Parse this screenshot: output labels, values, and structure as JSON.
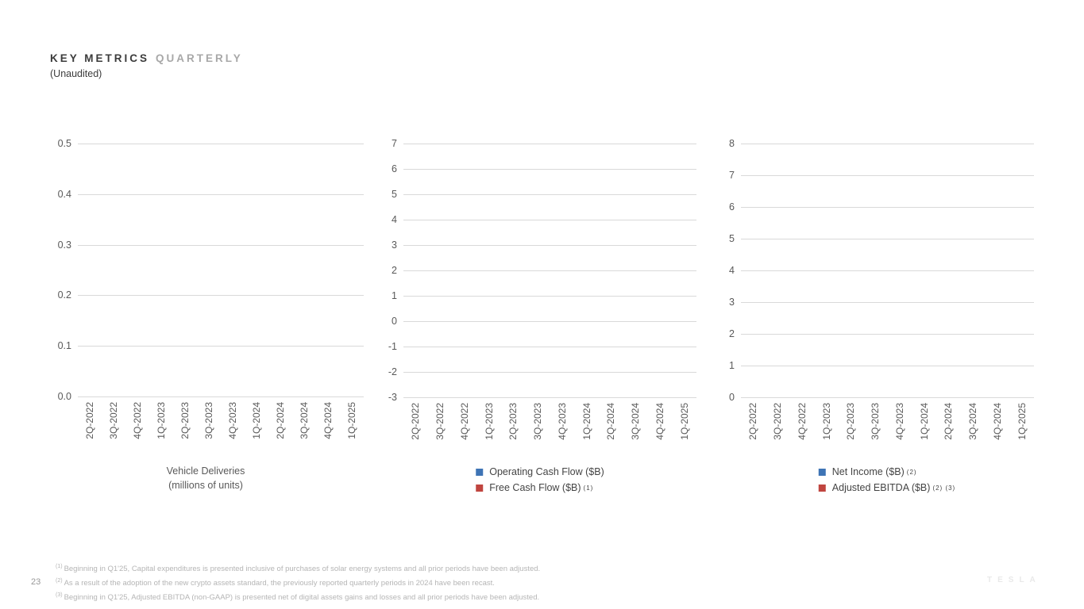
{
  "slide": {
    "title_primary": "KEY METRICS",
    "title_secondary": "QUARTERLY",
    "subtitle": "(Unaudited)",
    "page_number": "23",
    "watermark": "TESLA"
  },
  "colors": {
    "series_blue": "#3e74b5",
    "series_red": "#c0453f",
    "gridline": "#d9d9d9",
    "axis_text": "#595959"
  },
  "categories": [
    "2Q-2022",
    "3Q-2022",
    "4Q-2022",
    "1Q-2023",
    "2Q-2023",
    "3Q-2023",
    "4Q-2023",
    "1Q-2024",
    "2Q-2024",
    "3Q-2024",
    "4Q-2024",
    "1Q-2025"
  ],
  "chart_data": [
    {
      "type": "bar",
      "name": "chart-vehicle-deliveries",
      "title": "Vehicle Deliveries",
      "title_line2": "(millions of units)",
      "categories": [
        "2Q-2022",
        "3Q-2022",
        "4Q-2022",
        "1Q-2023",
        "2Q-2023",
        "3Q-2023",
        "4Q-2023",
        "1Q-2024",
        "2Q-2024",
        "3Q-2024",
        "4Q-2024",
        "1Q-2025"
      ],
      "series": [],
      "yticks": [
        "0.5",
        "0.4",
        "0.3",
        "0.2",
        "0.1",
        "0.0"
      ],
      "ylim": [
        0.0,
        0.5
      ],
      "grid": true,
      "legend_position": "none",
      "plotted_values": "empty - axes and gridlines only, no data rendered"
    },
    {
      "type": "bar",
      "name": "chart-cash-flow",
      "title": "",
      "categories": [
        "2Q-2022",
        "3Q-2022",
        "4Q-2022",
        "1Q-2023",
        "2Q-2023",
        "3Q-2023",
        "4Q-2023",
        "1Q-2024",
        "2Q-2024",
        "3Q-2024",
        "4Q-2024",
        "1Q-2025"
      ],
      "series": [
        {
          "name": "Operating Cash Flow ($B)",
          "sup": "",
          "color": "#3e74b5",
          "values": []
        },
        {
          "name": "Free Cash Flow ($B)",
          "sup": "(1)",
          "color": "#c0453f",
          "values": []
        }
      ],
      "yticks": [
        "7",
        "6",
        "5",
        "4",
        "3",
        "2",
        "1",
        "0",
        "-1",
        "-2",
        "-3"
      ],
      "ylim": [
        -3,
        7
      ],
      "grid": true,
      "legend_position": "bottom",
      "plotted_values": "empty - axes and gridlines only, no data rendered"
    },
    {
      "type": "bar",
      "name": "chart-net-income-ebitda",
      "title": "",
      "categories": [
        "2Q-2022",
        "3Q-2022",
        "4Q-2022",
        "1Q-2023",
        "2Q-2023",
        "3Q-2023",
        "4Q-2023",
        "1Q-2024",
        "2Q-2024",
        "3Q-2024",
        "4Q-2024",
        "1Q-2025"
      ],
      "series": [
        {
          "name": "Net Income ($B)",
          "sup": "(2)",
          "color": "#3e74b5",
          "values": []
        },
        {
          "name": "Adjusted EBITDA ($B)",
          "sup": "(2) (3)",
          "color": "#c0453f",
          "values": []
        }
      ],
      "yticks": [
        "8",
        "7",
        "6",
        "5",
        "4",
        "3",
        "2",
        "1",
        "0"
      ],
      "ylim": [
        0,
        8
      ],
      "grid": true,
      "legend_position": "bottom",
      "plotted_values": "empty - axes and gridlines only, no data rendered"
    }
  ],
  "footnotes": [
    {
      "marker": "(1)",
      "text": "Beginning in Q1'25, Capital expenditures is presented inclusive of purchases of solar energy systems and all prior periods have been adjusted."
    },
    {
      "marker": "(2)",
      "text": "As a result of the adoption of the new crypto assets standard, the previously reported quarterly periods in 2024 have been recast."
    },
    {
      "marker": "(3)",
      "text": "Beginning in Q1'25, Adjusted EBITDA (non-GAAP) is presented net of digital assets gains and losses and all prior periods have been adjusted."
    }
  ]
}
